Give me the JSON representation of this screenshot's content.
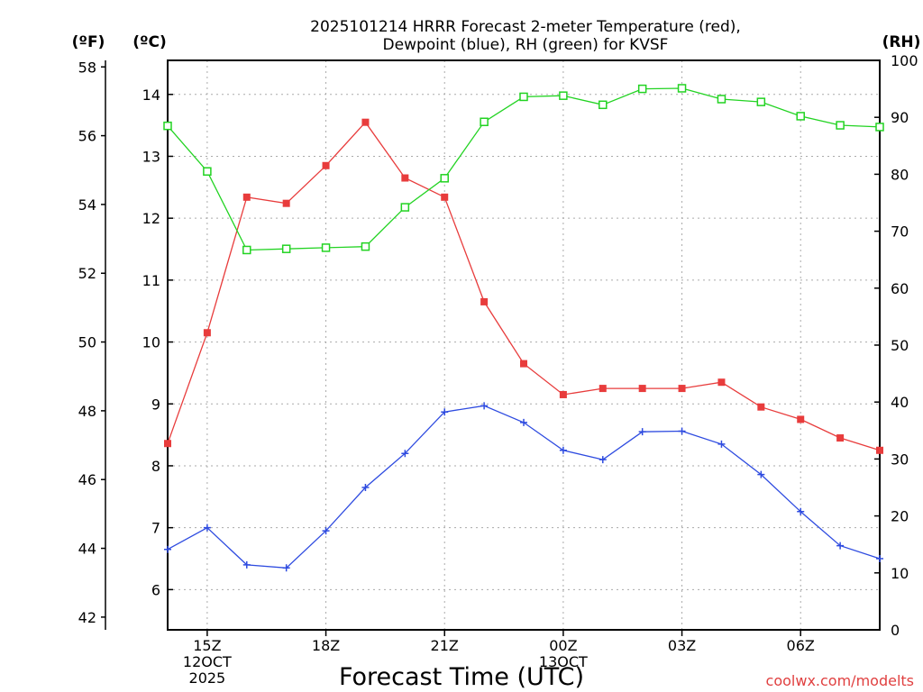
{
  "chart_data": {
    "type": "line",
    "title_line1": "2025101214 HRRR Forecast 2-meter Temperature (red),",
    "title_line2": "Dewpoint (blue), RH (green) for KVSF",
    "xlabel": "Forecast Time (UTC)",
    "credit": "coolwx.com/modelts",
    "unit_f": "(ºF)",
    "unit_c": "(ºC)",
    "unit_rh": "(RH)",
    "x": [
      "14Z",
      "15Z",
      "16Z",
      "17Z",
      "18Z",
      "19Z",
      "20Z",
      "21Z",
      "22Z",
      "23Z",
      "00Z",
      "01Z",
      "02Z",
      "03Z",
      "04Z",
      "05Z",
      "06Z",
      "07Z",
      "08Z"
    ],
    "x_tick_labels": [
      {
        "x": "15Z",
        "lines": [
          "15Z",
          "12OCT",
          "2025"
        ]
      },
      {
        "x": "18Z",
        "lines": [
          "18Z"
        ]
      },
      {
        "x": "21Z",
        "lines": [
          "21Z"
        ]
      },
      {
        "x": "00Z",
        "lines": [
          "00Z",
          "13OCT"
        ]
      },
      {
        "x": "03Z",
        "lines": [
          "03Z"
        ]
      },
      {
        "x": "06Z",
        "lines": [
          "06Z"
        ]
      }
    ],
    "celsius_range": [
      5.35,
      14.55
    ],
    "rh_range": [
      0,
      100
    ],
    "celsius_ticks": [
      "6",
      "7",
      "8",
      "9",
      "10",
      "11",
      "12",
      "13",
      "14"
    ],
    "fahrenheit_ticks": [
      "42",
      "44",
      "46",
      "48",
      "50",
      "52",
      "54",
      "56",
      "58"
    ],
    "rh_ticks": [
      "0",
      "10",
      "20",
      "30",
      "40",
      "50",
      "60",
      "70",
      "80",
      "90",
      "100"
    ],
    "colors": {
      "temperature": "#e83c3c",
      "dewpoint": "#2e4be0",
      "rh": "#22d322",
      "grid": "#aaaaaa"
    },
    "series": [
      {
        "name": "Temperature",
        "axis": "celsius",
        "marker": "filled-square",
        "values": [
          8.36,
          10.15,
          12.34,
          12.24,
          12.85,
          13.55,
          12.65,
          12.34,
          10.65,
          9.65,
          9.15,
          9.25,
          9.25,
          9.25,
          9.35,
          8.95,
          8.75,
          8.45,
          8.25
        ]
      },
      {
        "name": "Dewpoint",
        "axis": "celsius",
        "marker": "plus",
        "values": [
          6.65,
          7.0,
          6.4,
          6.35,
          6.95,
          7.65,
          8.2,
          8.87,
          8.97,
          8.7,
          8.25,
          8.1,
          8.55,
          8.56,
          8.35,
          7.86,
          7.26,
          6.71,
          6.5
        ]
      },
      {
        "name": "RH",
        "axis": "rh",
        "marker": "open-square",
        "values": [
          88.5,
          80.5,
          66.7,
          66.9,
          67.1,
          67.3,
          74.2,
          79.3,
          89.2,
          93.6,
          93.8,
          92.2,
          95.0,
          95.1,
          93.2,
          92.7,
          90.2,
          88.6,
          88.3
        ]
      }
    ]
  }
}
